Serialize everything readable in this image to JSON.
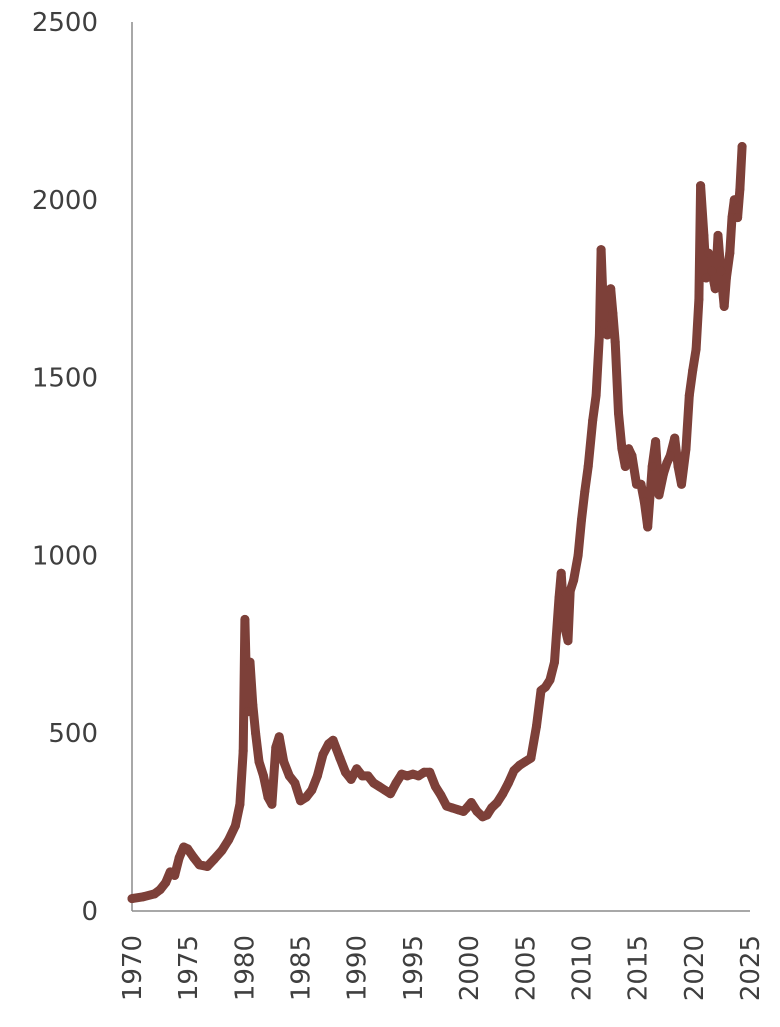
{
  "chart_data": {
    "type": "line",
    "title": "",
    "xlabel": "",
    "ylabel": "",
    "xlim": [
      1970,
      2025
    ],
    "ylim": [
      0,
      2500
    ],
    "x_ticks": [
      "1970",
      "1975",
      "1980",
      "1985",
      "1990",
      "1995",
      "2000",
      "2005",
      "2010",
      "2015",
      "2020",
      "2025"
    ],
    "y_ticks": [
      "0",
      "500",
      "1000",
      "1500",
      "2000",
      "2500"
    ],
    "grid": false,
    "legend": "none",
    "line_color": "#7d4039",
    "series": [
      {
        "x": [
          1970.0,
          1971.0,
          1972.0,
          1972.5,
          1973.0,
          1973.4,
          1973.8,
          1974.2,
          1974.6,
          1974.95,
          1975.5,
          1976.0,
          1976.7,
          1977.3,
          1978.0,
          1978.6,
          1979.2,
          1979.6,
          1979.9,
          1980.05,
          1980.25,
          1980.5,
          1980.75,
          1981.0,
          1981.3,
          1981.7,
          1982.1,
          1982.45,
          1982.8,
          1983.1,
          1983.5,
          1984.0,
          1984.5,
          1985.0,
          1985.5,
          1986.0,
          1986.5,
          1987.0,
          1987.5,
          1987.9,
          1988.5,
          1989.0,
          1989.5,
          1990.0,
          1990.5,
          1991.0,
          1991.5,
          1992.0,
          1992.5,
          1993.0,
          1993.5,
          1994.0,
          1994.5,
          1995.0,
          1995.5,
          1996.0,
          1996.5,
          1997.0,
          1997.5,
          1998.0,
          1998.5,
          1999.0,
          1999.5,
          1999.8,
          2000.2,
          2000.7,
          2001.2,
          2001.6,
          2002.0,
          2002.5,
          2003.0,
          2003.5,
          2004.0,
          2004.5,
          2005.0,
          2005.5,
          2006.0,
          2006.4,
          2006.8,
          2007.2,
          2007.6,
          2008.0,
          2008.2,
          2008.5,
          2008.8,
          2009.0,
          2009.3,
          2009.7,
          2010.0,
          2010.3,
          2010.6,
          2011.0,
          2011.3,
          2011.6,
          2011.75,
          2012.0,
          2012.3,
          2012.6,
          2012.8,
          2013.0,
          2013.3,
          2013.6,
          2013.9,
          2014.2,
          2014.5,
          2014.9,
          2015.3,
          2015.6,
          2015.9,
          2016.3,
          2016.6,
          2016.9,
          2017.3,
          2017.6,
          2017.9,
          2018.3,
          2018.6,
          2018.9,
          2019.3,
          2019.6,
          2019.9,
          2020.2,
          2020.45,
          2020.6,
          2020.9,
          2021.1,
          2021.3,
          2021.6,
          2021.9,
          2022.15,
          2022.4,
          2022.7,
          2022.9,
          2023.2,
          2023.4,
          2023.6,
          2023.9,
          2024.1,
          2024.3
        ],
        "values": [
          35,
          40,
          48,
          60,
          80,
          110,
          100,
          150,
          180,
          175,
          150,
          130,
          125,
          145,
          170,
          200,
          240,
          300,
          450,
          820,
          560,
          700,
          580,
          500,
          420,
          380,
          320,
          300,
          460,
          490,
          420,
          380,
          360,
          310,
          320,
          340,
          380,
          440,
          470,
          480,
          430,
          390,
          370,
          400,
          380,
          380,
          360,
          350,
          340,
          330,
          360,
          385,
          380,
          385,
          380,
          390,
          390,
          350,
          325,
          295,
          290,
          285,
          280,
          290,
          305,
          280,
          265,
          270,
          290,
          305,
          330,
          360,
          395,
          410,
          420,
          430,
          520,
          620,
          630,
          650,
          700,
          880,
          950,
          800,
          760,
          900,
          930,
          1000,
          1100,
          1180,
          1250,
          1380,
          1450,
          1620,
          1860,
          1650,
          1620,
          1750,
          1680,
          1600,
          1400,
          1300,
          1250,
          1300,
          1280,
          1200,
          1200,
          1150,
          1080,
          1250,
          1320,
          1170,
          1230,
          1260,
          1280,
          1330,
          1250,
          1200,
          1300,
          1450,
          1520,
          1580,
          1720,
          2040,
          1900,
          1780,
          1850,
          1800,
          1750,
          1900,
          1800,
          1700,
          1780,
          1850,
          1950,
          2000,
          1950,
          2030,
          2150
        ]
      }
    ]
  }
}
